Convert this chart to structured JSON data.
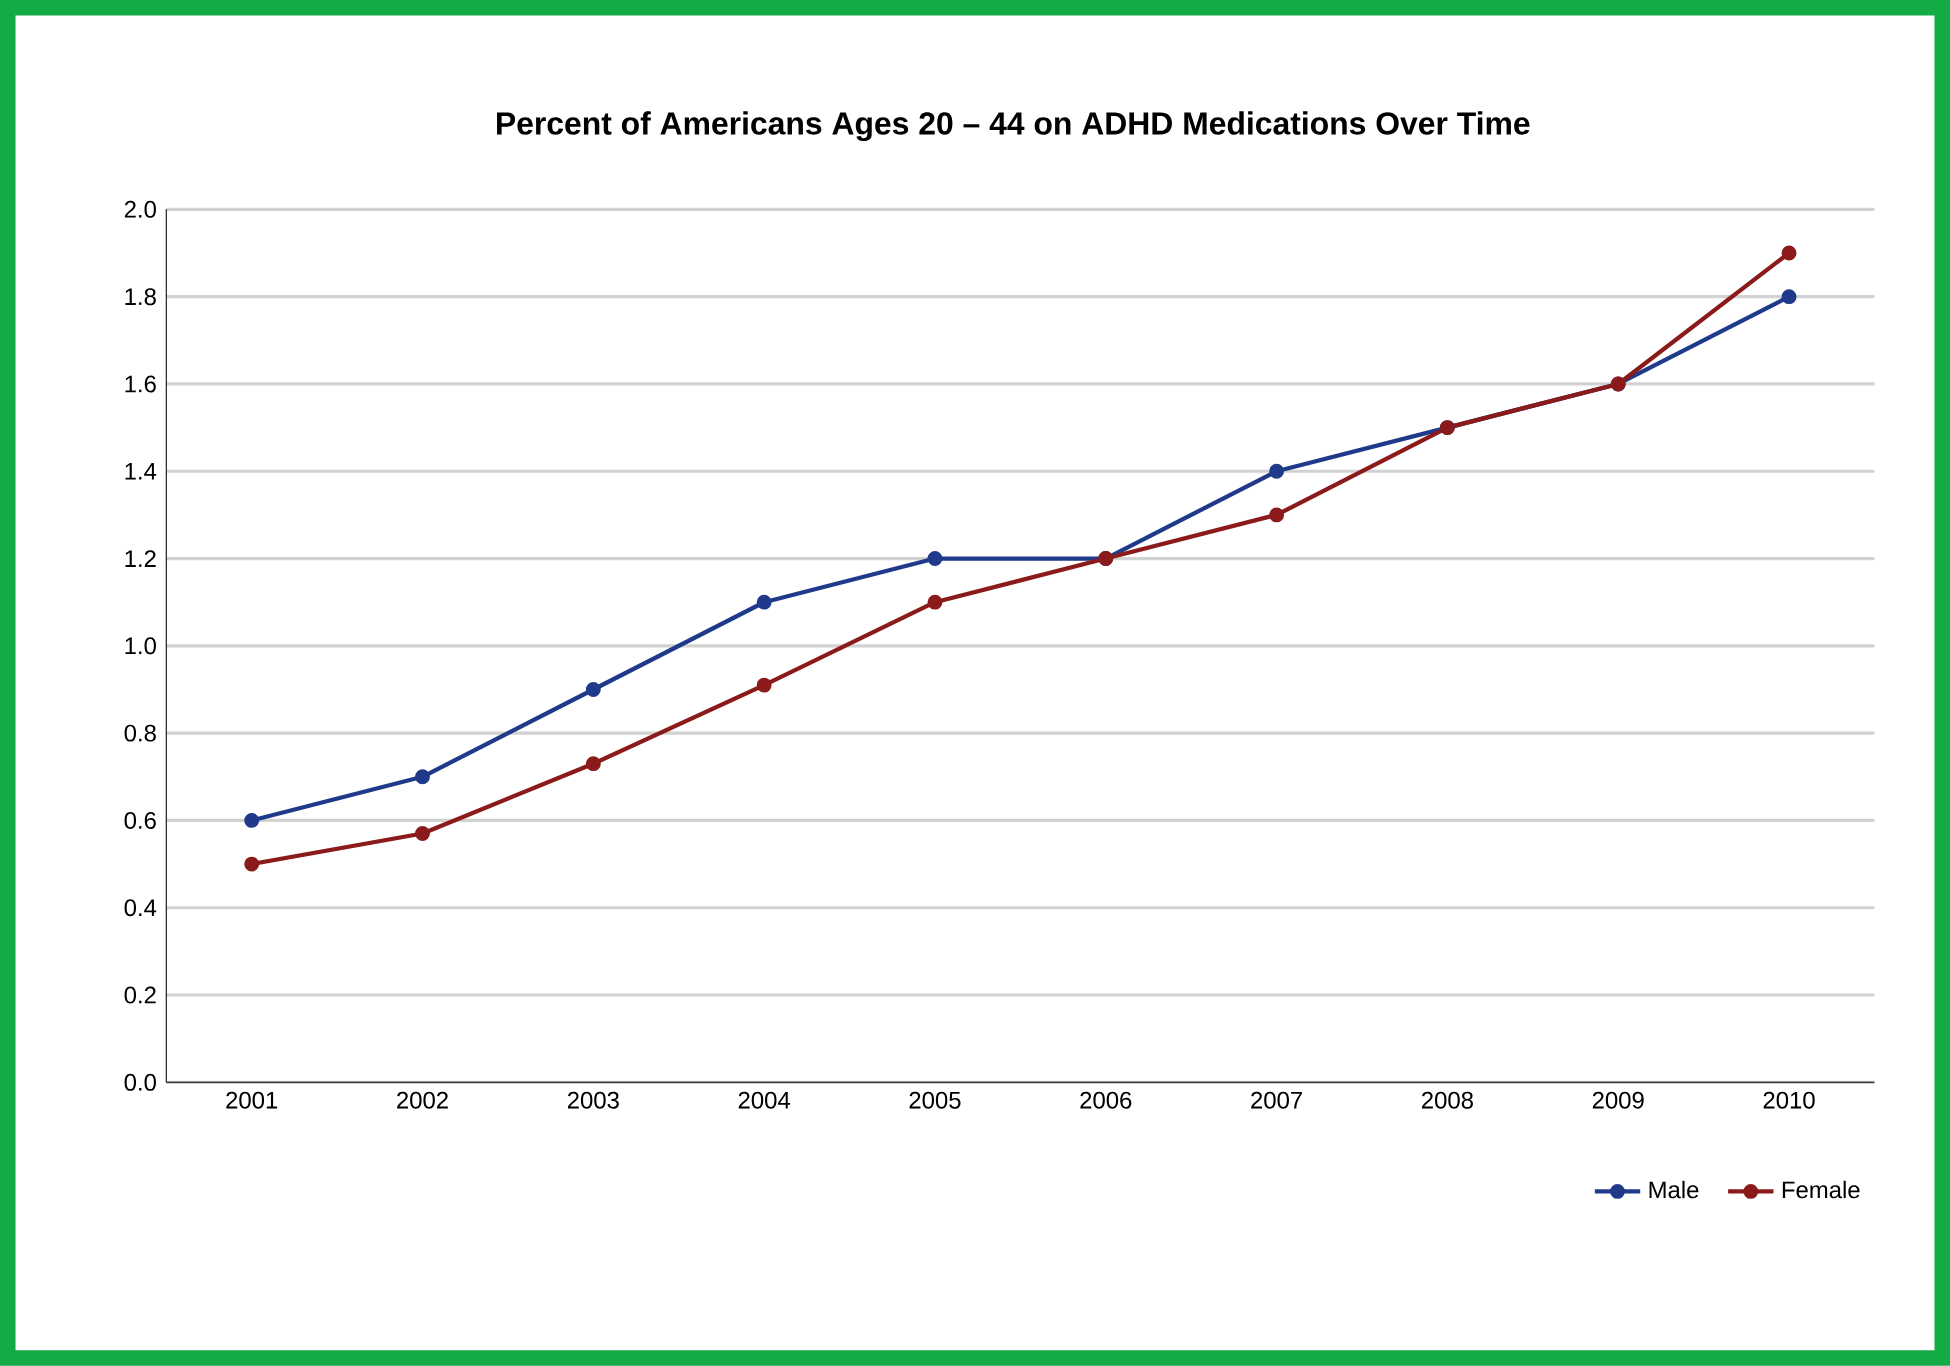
{
  "chart_data": {
    "type": "line",
    "title": "Percent of Americans Ages 20 – 44 on ADHD Medications Over Time",
    "categories": [
      "2001",
      "2002",
      "2003",
      "2004",
      "2005",
      "2006",
      "2007",
      "2008",
      "2009",
      "2010"
    ],
    "series": [
      {
        "name": "Male",
        "color": "#1f3a8a",
        "values": [
          0.6,
          0.7,
          0.9,
          1.1,
          1.2,
          1.2,
          1.4,
          1.5,
          1.6,
          1.8
        ]
      },
      {
        "name": "Female",
        "color": "#8b1a1a",
        "values": [
          0.5,
          0.57,
          0.73,
          0.91,
          1.1,
          1.2,
          1.3,
          1.5,
          1.6,
          1.9
        ]
      }
    ],
    "ylim": [
      0,
      2
    ],
    "yticks": [
      {
        "value": 0,
        "label": "0.0"
      },
      {
        "value": 0.2,
        "label": "0.2"
      },
      {
        "value": 0.4,
        "label": "0.4"
      },
      {
        "value": 0.6,
        "label": "0.6"
      },
      {
        "value": 0.8,
        "label": "0.8"
      },
      {
        "value": 1.0,
        "label": "1.0"
      },
      {
        "value": 1.2,
        "label": "1.2"
      },
      {
        "value": 1.4,
        "label": "1.4"
      },
      {
        "value": 1.6,
        "label": "1.6"
      },
      {
        "value": 1.8,
        "label": "1.8"
      },
      {
        "value": 2.0,
        "label": "2.0"
      }
    ],
    "grid": "y",
    "legend": "bottom right",
    "marker": "circle",
    "line_style": "solid"
  }
}
